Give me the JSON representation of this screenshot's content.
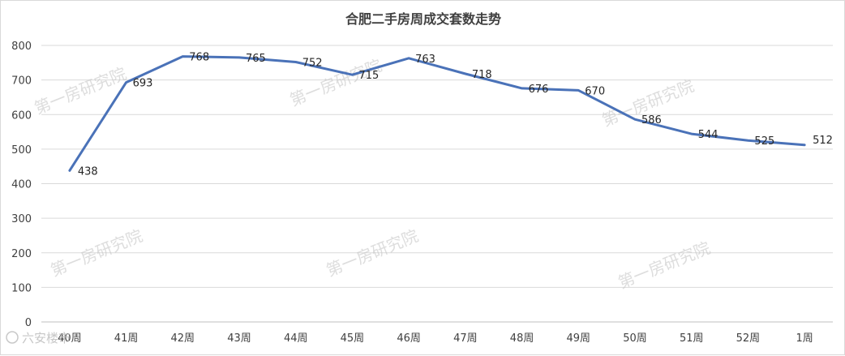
{
  "chart_data": {
    "type": "line",
    "title": "合肥二手房周成交套数走势",
    "categories": [
      "40周",
      "41周",
      "42周",
      "43周",
      "44周",
      "45周",
      "46周",
      "47周",
      "48周",
      "49周",
      "50周",
      "51周",
      "52周",
      "1周"
    ],
    "series": [
      {
        "values": [
          438,
          693,
          768,
          765,
          752,
          715,
          763,
          718,
          676,
          670,
          586,
          544,
          525,
          512
        ]
      }
    ],
    "ylim": [
      0,
      800
    ],
    "yticks": [
      0,
      100,
      200,
      300,
      400,
      500,
      600,
      700,
      800
    ],
    "grid": true,
    "line_color": "#4a72b8"
  },
  "watermark": "第一房研究院",
  "brand": "六安楼市"
}
